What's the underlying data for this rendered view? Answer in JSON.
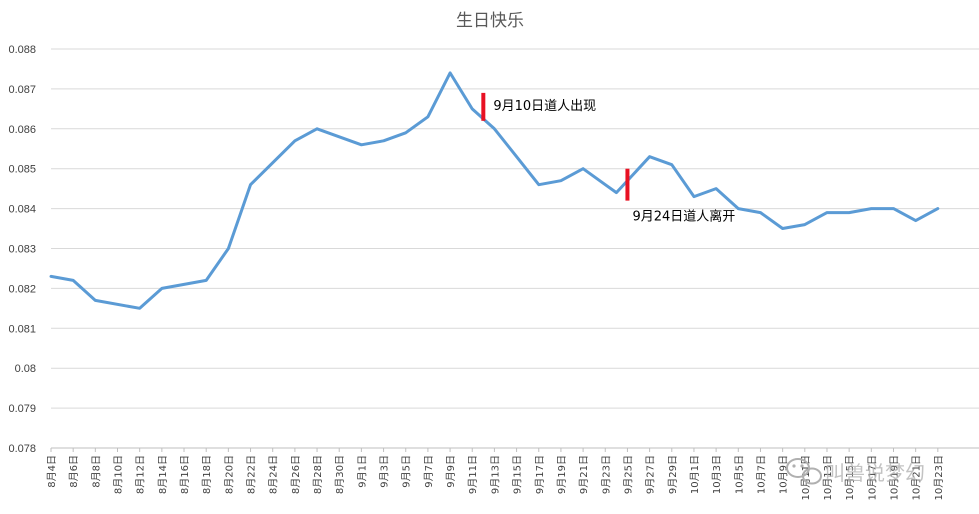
{
  "chart_data": {
    "type": "line",
    "title": "生日快乐",
    "ylim": [
      0.078,
      0.088
    ],
    "yticks": [
      "0.078",
      "0.079",
      "0.08",
      "0.081",
      "0.082",
      "0.083",
      "0.084",
      "0.085",
      "0.086",
      "0.087",
      "0.088"
    ],
    "grid": true,
    "legend": "none",
    "line_color": "#5b9bd5",
    "marker_color": "#e81123",
    "categories": [
      "8月4日",
      "8月5日",
      "8月6日",
      "8月7日",
      "8月8日",
      "8月9日",
      "8月10日",
      "8月11日",
      "8月12日",
      "8月13日",
      "8月14日",
      "8月15日",
      "8月16日",
      "8月17日",
      "8月18日",
      "8月19日",
      "8月20日",
      "8月21日",
      "8月22日",
      "8月23日",
      "8月24日",
      "8月25日",
      "8月26日",
      "8月27日",
      "8月28日",
      "8月29日",
      "8月30日",
      "8月31日",
      "9月1日",
      "9月2日",
      "9月3日",
      "9月4日",
      "9月5日",
      "9月6日",
      "9月7日",
      "9月8日",
      "9月9日",
      "9月10日",
      "9月11日",
      "9月12日",
      "9月13日",
      "9月14日",
      "9月15日",
      "9月16日",
      "9月17日",
      "9月18日",
      "9月19日",
      "9月20日",
      "9月21日",
      "9月22日",
      "9月23日",
      "9月24日",
      "9月25日",
      "9月26日",
      "9月27日",
      "9月28日",
      "9月29日",
      "9月30日",
      "10月1日",
      "10月2日",
      "10月3日",
      "10月4日",
      "10月5日",
      "10月6日",
      "10月7日",
      "10月8日",
      "10月9日",
      "10月10日",
      "10月11日",
      "10月12日",
      "10月13日",
      "10月14日",
      "10月15日",
      "10月16日",
      "10月17日",
      "10月18日",
      "10月19日",
      "10月20日",
      "10月21日",
      "10月22日",
      "10月23日",
      "10月24日",
      "10月25日"
    ],
    "x_tick_labels": [
      "8月4日",
      "8月6日",
      "8月8日",
      "8月10日",
      "8月12日",
      "8月14日",
      "8月16日",
      "8月18日",
      "8月20日",
      "8月22日",
      "8月24日",
      "8月26日",
      "8月28日",
      "8月30日",
      "9月1日",
      "9月3日",
      "9月5日",
      "9月7日",
      "9月9日",
      "9月11日",
      "9月13日",
      "9月15日",
      "9月17日",
      "9月19日",
      "9月21日",
      "9月23日",
      "9月25日",
      "9月27日",
      "9月29日",
      "10月1日",
      "10月3日",
      "10月5日",
      "10月7日",
      "10月9日",
      "10月11日",
      "10月13日",
      "10月15日",
      "10月17日",
      "10月19日",
      "10月21日",
      "10月23日"
    ],
    "key_points": [
      {
        "x": "8月4日",
        "y": 0.0823
      },
      {
        "x": "8月6日",
        "y": 0.0822
      },
      {
        "x": "8月8日",
        "y": 0.0817
      },
      {
        "x": "8月12日",
        "y": 0.0815
      },
      {
        "x": "8月14日",
        "y": 0.082
      },
      {
        "x": "8月18日",
        "y": 0.0822
      },
      {
        "x": "8月20日",
        "y": 0.083
      },
      {
        "x": "8月22日",
        "y": 0.0846
      },
      {
        "x": "8月26日",
        "y": 0.0857
      },
      {
        "x": "8月28日",
        "y": 0.086
      },
      {
        "x": "9月1日",
        "y": 0.0856
      },
      {
        "x": "9月3日",
        "y": 0.0857
      },
      {
        "x": "9月5日",
        "y": 0.0859
      },
      {
        "x": "9月7日",
        "y": 0.0863
      },
      {
        "x": "9月9日",
        "y": 0.0874
      },
      {
        "x": "9月11日",
        "y": 0.0865
      },
      {
        "x": "9月13日",
        "y": 0.086
      },
      {
        "x": "9月15日",
        "y": 0.0853
      },
      {
        "x": "9月17日",
        "y": 0.0846
      },
      {
        "x": "9月19日",
        "y": 0.0847
      },
      {
        "x": "9月21日",
        "y": 0.085
      },
      {
        "x": "9月23日",
        "y": 0.0846
      },
      {
        "x": "9月24日",
        "y": 0.0844
      },
      {
        "x": "9月27日",
        "y": 0.0853
      },
      {
        "x": "9月29日",
        "y": 0.0851
      },
      {
        "x": "10月1日",
        "y": 0.0843
      },
      {
        "x": "10月3日",
        "y": 0.0845
      },
      {
        "x": "10月5日",
        "y": 0.084
      },
      {
        "x": "10月7日",
        "y": 0.0839
      },
      {
        "x": "10月9日",
        "y": 0.0835
      },
      {
        "x": "10月11日",
        "y": 0.0836
      },
      {
        "x": "10月13日",
        "y": 0.0839
      },
      {
        "x": "10月15日",
        "y": 0.0839
      },
      {
        "x": "10月17日",
        "y": 0.084
      },
      {
        "x": "10月19日",
        "y": 0.084
      },
      {
        "x": "10月21日",
        "y": 0.0837
      },
      {
        "x": "10月23日",
        "y": 0.084
      }
    ],
    "annotations": [
      {
        "x": "9月12日",
        "y_from": 0.0862,
        "y_to": 0.0869,
        "text": "9月10日道人出现",
        "text_side": "right"
      },
      {
        "x": "9月25日",
        "y_from": 0.0842,
        "y_to": 0.085,
        "text": "9月24日道人离开",
        "text_side": "below"
      }
    ]
  },
  "watermark": {
    "icon": "wechat-icon",
    "text": "叫兽说梦幻"
  }
}
